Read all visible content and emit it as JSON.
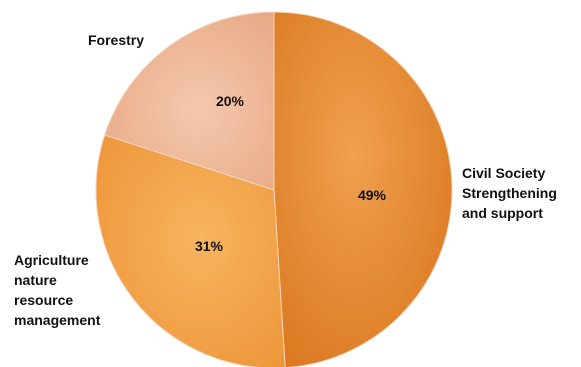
{
  "chart_data": {
    "type": "pie",
    "title": "",
    "categories": [
      "Civil Society Strengthening and support",
      "Agriculture nature resource management",
      "Forestry"
    ],
    "values": [
      49,
      31,
      20
    ],
    "value_labels": [
      "49%",
      "31%",
      "20%"
    ],
    "category_label_lines": [
      [
        "Civil Society",
        "Strengthening",
        "and support"
      ],
      [
        "Agriculture",
        "nature",
        "resource",
        "management"
      ],
      [
        "Forestry"
      ]
    ],
    "legend": "none",
    "start_angle": "12 o'clock",
    "direction": "clockwise",
    "colors": {
      "civil_society": "#E9892F",
      "agriculture": "#F3A04A",
      "forestry": "#EDB496"
    }
  }
}
